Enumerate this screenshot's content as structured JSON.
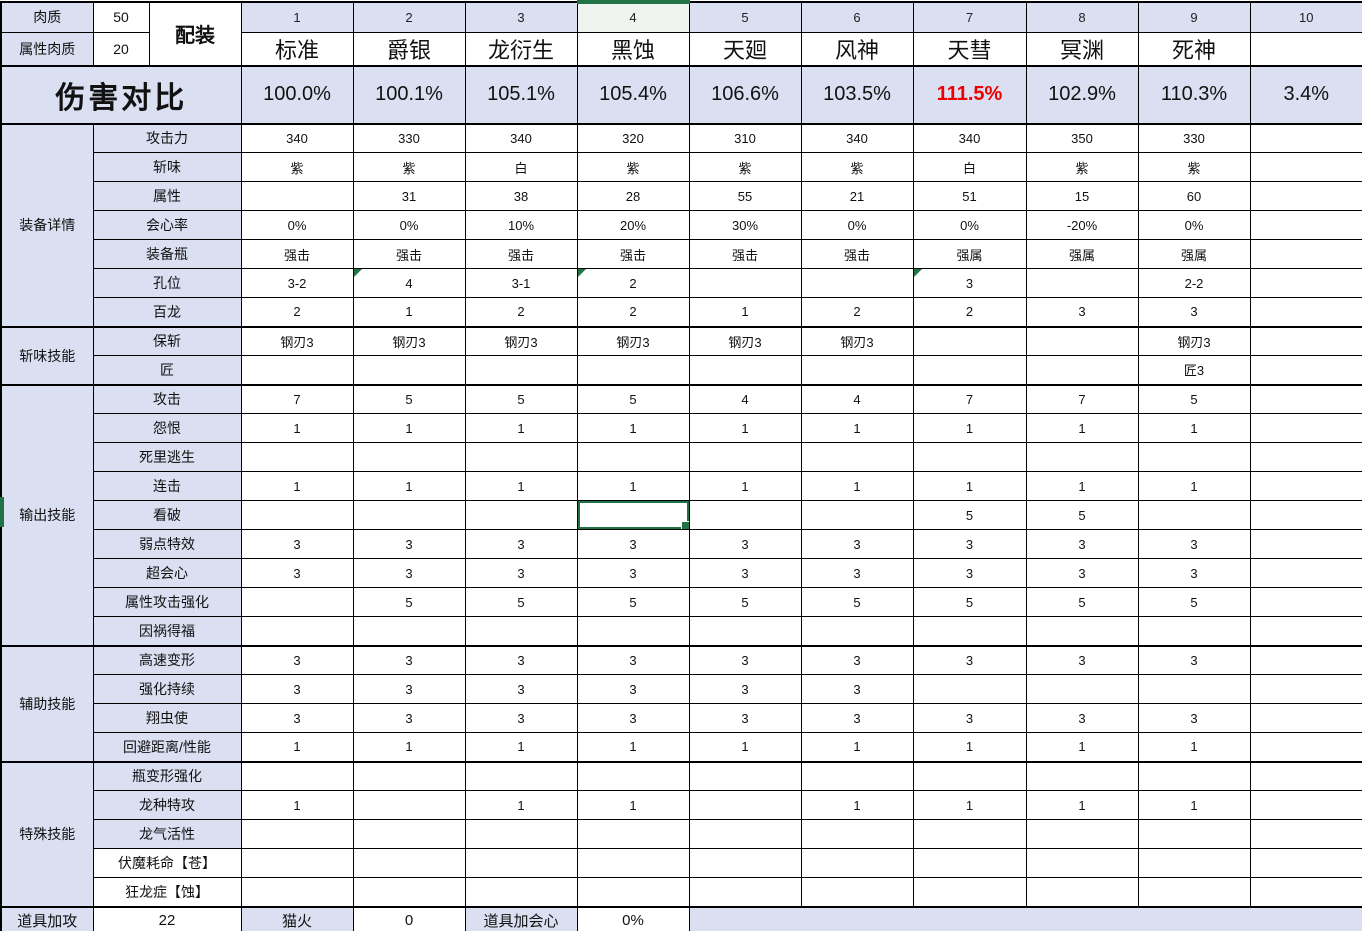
{
  "meta": {
    "hitzone_label": "肉质",
    "hitzone_value": "50",
    "elem_hitzone_label": "属性肉质",
    "elem_hitzone_value": "20",
    "loadout_label": "配装"
  },
  "columns": {
    "numbers": [
      "1",
      "2",
      "3",
      "4",
      "5",
      "6",
      "7",
      "8",
      "9",
      "10"
    ],
    "names": [
      "标准",
      "爵银",
      "龙衍生",
      "黑蚀",
      "天廻",
      "风神",
      "天彗",
      "冥渊",
      "死神",
      ""
    ],
    "selected_col": 4
  },
  "damage_row": {
    "label": "伤害对比",
    "values": [
      "100.0%",
      "100.1%",
      "105.1%",
      "105.4%",
      "106.6%",
      "103.5%",
      "111.5%",
      "102.9%",
      "110.3%",
      "3.4%"
    ],
    "red_col": 7
  },
  "groups": [
    {
      "label": "装备详情",
      "rows": [
        {
          "label": "攻击力",
          "values": [
            "340",
            "330",
            "340",
            "320",
            "310",
            "340",
            "340",
            "350",
            "330",
            ""
          ]
        },
        {
          "label": "斩味",
          "values": [
            "紫",
            "紫",
            "白",
            "紫",
            "紫",
            "紫",
            "白",
            "紫",
            "紫",
            ""
          ]
        },
        {
          "label": "属性",
          "values": [
            "",
            "31",
            "38",
            "28",
            "55",
            "21",
            "51",
            "15",
            "60",
            ""
          ]
        },
        {
          "label": "会心率",
          "values": [
            "0%",
            "0%",
            "10%",
            "20%",
            "30%",
            "0%",
            "0%",
            "-20%",
            "0%",
            ""
          ]
        },
        {
          "label": "装备瓶",
          "values": [
            "强击",
            "强击",
            "强击",
            "强击",
            "强击",
            "强击",
            "强属",
            "强属",
            "强属",
            ""
          ]
        },
        {
          "label": "孔位",
          "values": [
            "3-2",
            "4",
            "3-1",
            "2",
            "",
            "",
            "3",
            "",
            "2-2",
            ""
          ],
          "triangles": [
            2,
            4,
            7
          ]
        },
        {
          "label": "百龙",
          "values": [
            "2",
            "1",
            "2",
            "2",
            "1",
            "2",
            "2",
            "3",
            "3",
            ""
          ]
        }
      ]
    },
    {
      "label": "斩味技能",
      "rows": [
        {
          "label": "保斩",
          "values": [
            "钢刃3",
            "钢刃3",
            "钢刃3",
            "钢刃3",
            "钢刃3",
            "钢刃3",
            "",
            "",
            "钢刃3",
            ""
          ]
        },
        {
          "label": "匠",
          "values": [
            "",
            "",
            "",
            "",
            "",
            "",
            "",
            "",
            "匠3",
            ""
          ]
        }
      ]
    },
    {
      "label": "输出技能",
      "rows": [
        {
          "label": "攻击",
          "values": [
            "7",
            "5",
            "5",
            "5",
            "4",
            "4",
            "7",
            "7",
            "5",
            ""
          ]
        },
        {
          "label": "怨恨",
          "values": [
            "1",
            "1",
            "1",
            "1",
            "1",
            "1",
            "1",
            "1",
            "1",
            ""
          ]
        },
        {
          "label": "死里逃生",
          "values": [
            "",
            "",
            "",
            "",
            "",
            "",
            "",
            "",
            "",
            ""
          ]
        },
        {
          "label": "连击",
          "values": [
            "1",
            "1",
            "1",
            "1",
            "1",
            "1",
            "1",
            "1",
            "1",
            ""
          ]
        },
        {
          "label": "看破",
          "values": [
            "",
            "",
            "",
            "",
            "",
            "",
            "5",
            "5",
            "",
            ""
          ],
          "selected_col": 4
        },
        {
          "label": "弱点特效",
          "values": [
            "3",
            "3",
            "3",
            "3",
            "3",
            "3",
            "3",
            "3",
            "3",
            ""
          ]
        },
        {
          "label": "超会心",
          "values": [
            "3",
            "3",
            "3",
            "3",
            "3",
            "3",
            "3",
            "3",
            "3",
            ""
          ]
        },
        {
          "label": "属性攻击强化",
          "values": [
            "",
            "5",
            "5",
            "5",
            "5",
            "5",
            "5",
            "5",
            "5",
            ""
          ]
        },
        {
          "label": "因祸得福",
          "values": [
            "",
            "",
            "",
            "",
            "",
            "",
            "",
            "",
            "",
            ""
          ]
        }
      ]
    },
    {
      "label": "辅助技能",
      "rows": [
        {
          "label": "高速变形",
          "values": [
            "3",
            "3",
            "3",
            "3",
            "3",
            "3",
            "3",
            "3",
            "3",
            ""
          ]
        },
        {
          "label": "强化持续",
          "values": [
            "3",
            "3",
            "3",
            "3",
            "3",
            "3",
            "",
            "",
            "",
            ""
          ]
        },
        {
          "label": "翔虫使",
          "values": [
            "3",
            "3",
            "3",
            "3",
            "3",
            "3",
            "3",
            "3",
            "3",
            ""
          ]
        },
        {
          "label": "回避距离/性能",
          "values": [
            "1",
            "1",
            "1",
            "1",
            "1",
            "1",
            "1",
            "1",
            "1",
            ""
          ]
        }
      ]
    },
    {
      "label": "特殊技能",
      "rows": [
        {
          "label": "瓶变形强化",
          "values": [
            "",
            "",
            "",
            "",
            "",
            "",
            "",
            "",
            "",
            ""
          ]
        },
        {
          "label": "龙种特攻",
          "values": [
            "1",
            "",
            "1",
            "1",
            "",
            "1",
            "1",
            "1",
            "1",
            ""
          ]
        },
        {
          "label": "龙气活性",
          "values": [
            "",
            "",
            "",
            "",
            "",
            "",
            "",
            "",
            "",
            ""
          ]
        },
        {
          "label": "伏魔耗命【苍】",
          "values": [
            "",
            "",
            "",
            "",
            "",
            "",
            "",
            "",
            "",
            ""
          ],
          "white_label": true
        },
        {
          "label": "狂龙症【蚀】",
          "values": [
            "",
            "",
            "",
            "",
            "",
            "",
            "",
            "",
            "",
            ""
          ],
          "white_label": true
        }
      ]
    }
  ],
  "bottom_row": {
    "group_label": "道具加攻",
    "attack_value": "22",
    "cat_label": "猫火",
    "cat_value": "0",
    "crit_label": "道具加会心",
    "crit_value": "0%"
  },
  "colors": {
    "header_blue": "#dadff1",
    "selection_green": "#217346",
    "alert_red": "#ee0000"
  }
}
